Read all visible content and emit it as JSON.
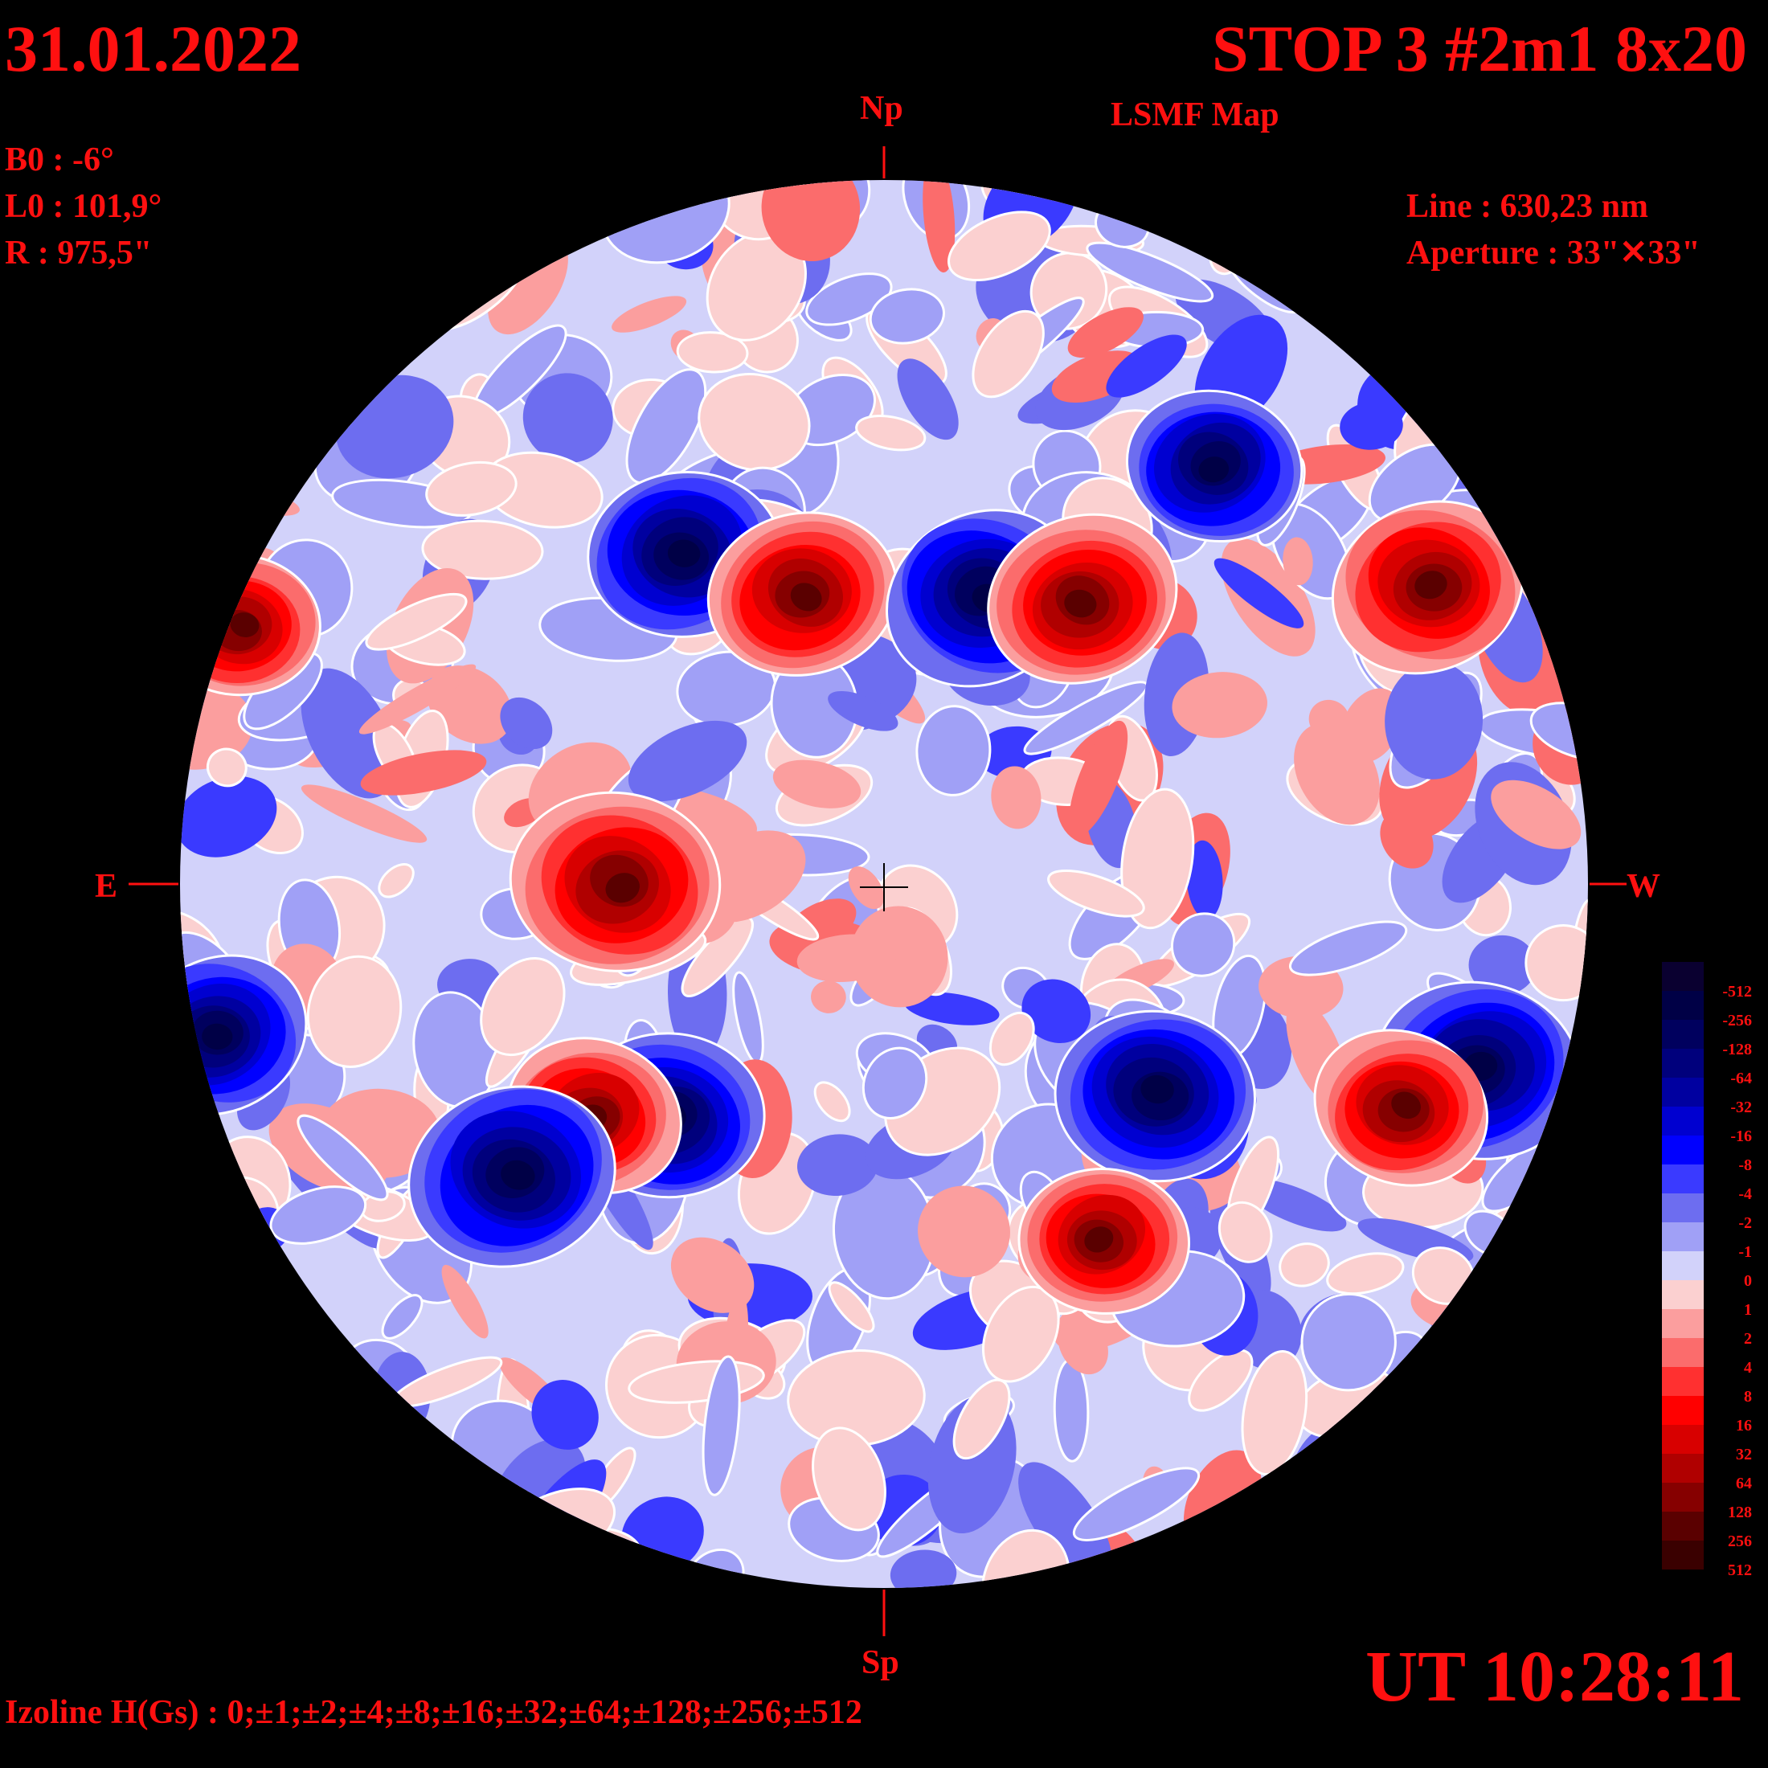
{
  "header": {
    "date": "31.01.2022",
    "title": "STOP 3 #2m1 8x20",
    "subtitle": "LSMF  Map"
  },
  "params": {
    "b0": "B0 : -6°",
    "l0": "L0 : 101,9°",
    "r": "R  : 975,5\"",
    "line": "Line :  630,23 nm",
    "aperture": "Aperture : 33\"✕33\""
  },
  "directions": {
    "north": "Np",
    "south": "Sp",
    "east": "E",
    "west": "W"
  },
  "footer": {
    "ut": "UT 10:28:11",
    "izoline": "Izoline H(Gs) : 0;±1;±2;±4;±8;±16;±32;±64;±128;±256;±512"
  },
  "colorbar": {
    "labels": [
      "-512",
      "-256",
      "-128",
      "-64",
      "-32",
      "-16",
      "-8",
      "-4",
      "-2",
      "-1",
      "0",
      "1",
      "2",
      "4",
      "8",
      "16",
      "32",
      "64",
      "128",
      "256",
      "512"
    ],
    "colors": [
      "#0a0030",
      "#000046",
      "#00005e",
      "#00007c",
      "#0000a0",
      "#0000d0",
      "#0000ff",
      "#3a3aff",
      "#6d6df0",
      "#a0a0f6",
      "#d2d2fa",
      "#fbd0d0",
      "#fb9e9e",
      "#fb6c6c",
      "#ff3030",
      "#ff0000",
      "#d80000",
      "#b00000",
      "#860000",
      "#5a0000",
      "#3a0000"
    ]
  },
  "colors": {
    "label": "#ff1010",
    "disk_background": "#d2d2fa",
    "isoline": "#ffffff"
  }
}
